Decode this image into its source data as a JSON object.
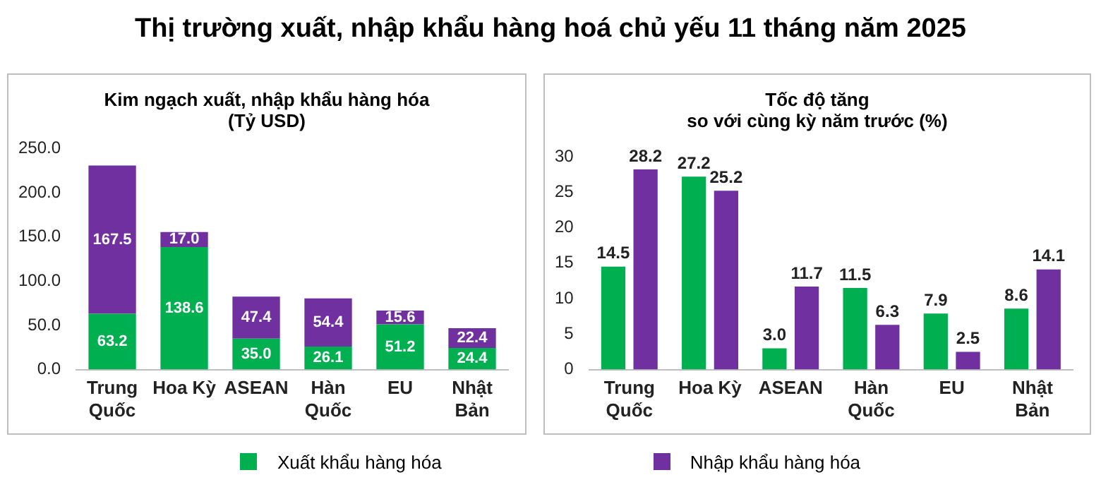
{
  "chart_data": [
    {
      "type": "bar",
      "title": "Thị trường xuất, nhập khẩu hàng hoá chủ yếu 11 tháng năm 2025",
      "subtitle": "Kim ngạch xuất, nhập khẩu hàng hóa\n(Tỷ USD)",
      "categories": [
        "Trung\nQuốc",
        "Hoa Kỳ",
        "ASEAN",
        "Hàn\nQuốc",
        "EU",
        "Nhật\nBản"
      ],
      "stacked": true,
      "legend": "bottom",
      "ylim": [
        0,
        250
      ],
      "yticks": [
        {
          "value": 0,
          "label": "0.0"
        },
        {
          "value": 50,
          "label": "50.0"
        },
        {
          "value": 100,
          "label": "100.0"
        },
        {
          "value": 150,
          "label": "150.0"
        },
        {
          "value": 200,
          "label": "200.0"
        },
        {
          "value": 250,
          "label": "250.0"
        }
      ],
      "series": [
        {
          "name": "Xuất khẩu hàng hóa",
          "color": "#00b050",
          "values": [
            63.2,
            138.6,
            35.0,
            26.1,
            51.2,
            24.4
          ],
          "value_labels": [
            "63.2",
            "138.6",
            "35.0",
            "26.1",
            "51.2",
            "24.4"
          ]
        },
        {
          "name": "Nhập khẩu hàng hóa",
          "color": "#7030a0",
          "values": [
            167.5,
            17.0,
            47.4,
            54.4,
            15.6,
            22.4
          ],
          "value_labels": [
            "167.5",
            "17.0",
            "47.4",
            "54.4",
            "15.6",
            "22.4"
          ]
        }
      ]
    },
    {
      "type": "bar",
      "title": "Tốc độ tăng\nso với cùng kỳ năm trước (%)",
      "categories": [
        "Trung\nQuốc",
        "Hoa Kỳ",
        "ASEAN",
        "Hàn\nQuốc",
        "EU",
        "Nhật\nBản"
      ],
      "ylim": [
        0,
        30
      ],
      "yticks": [
        0,
        5,
        10,
        15,
        20,
        25,
        30
      ],
      "series": [
        {
          "color": "#00b050",
          "values": [
            14.5,
            27.2,
            3.0,
            11.5,
            7.9,
            8.6
          ],
          "value_labels": [
            "14.5",
            "27.2",
            "3.0",
            "11.5",
            "7.9",
            "8.6"
          ]
        },
        {
          "color": "#7030a0",
          "values": [
            28.2,
            25.2,
            11.7,
            6.3,
            2.5,
            14.1
          ],
          "value_labels": [
            "28.2",
            "25.2",
            "11.7",
            "6.3",
            "2.5",
            "14.1"
          ]
        }
      ]
    }
  ]
}
